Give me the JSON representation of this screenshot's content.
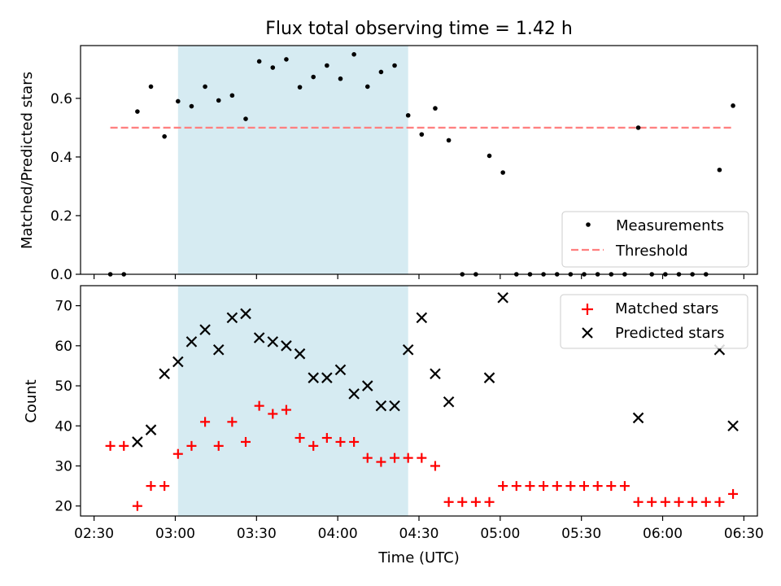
{
  "chart_data": [
    {
      "type": "scatter",
      "title": "Flux total observing time = 1.42 h",
      "xlabel": "",
      "ylabel": "Matched/Predicted stars",
      "xlim": [
        "02:25",
        "06:35"
      ],
      "ylim": [
        0,
        0.78
      ],
      "yticks": [
        "0.0",
        "0.2",
        "0.4",
        "0.6"
      ],
      "shaded_interval": [
        "03:01",
        "04:26"
      ],
      "shaded_color": "#add8e6",
      "legend_position": "lower-right",
      "series": [
        {
          "name": "Measurements",
          "marker": "dot",
          "color": "#000000",
          "x": [
            "02:36",
            "02:41",
            "02:46",
            "02:51",
            "02:56",
            "03:01",
            "03:06",
            "03:11",
            "03:16",
            "03:21",
            "03:26",
            "03:31",
            "03:36",
            "03:41",
            "03:46",
            "03:51",
            "03:56",
            "04:01",
            "04:06",
            "04:11",
            "04:16",
            "04:21",
            "04:26",
            "04:31",
            "04:36",
            "04:41",
            "04:46",
            "04:51",
            "04:56",
            "05:01",
            "05:06",
            "05:11",
            "05:16",
            "05:21",
            "05:26",
            "05:31",
            "05:36",
            "05:41",
            "05:46",
            "05:51",
            "05:56",
            "06:01",
            "06:06",
            "06:11",
            "06:16",
            "06:21",
            "06:26"
          ],
          "y": [
            0,
            0,
            0.555,
            0.64,
            0.47,
            0.59,
            0.573,
            0.64,
            0.593,
            0.61,
            0.53,
            0.726,
            0.705,
            0.733,
            0.638,
            0.673,
            0.712,
            0.667,
            0.75,
            0.64,
            0.69,
            0.712,
            0.542,
            0.477,
            0.566,
            0.457,
            0,
            0,
            0.404,
            0.347,
            0,
            0,
            0,
            0,
            0,
            0,
            0,
            0,
            0,
            0.5,
            0,
            0,
            0,
            0,
            0,
            0.356,
            0.575
          ]
        },
        {
          "name": "Threshold",
          "style": "dashed",
          "color": "#ff7f7f",
          "x": [
            "02:36",
            "06:26"
          ],
          "y": [
            0.5,
            0.5
          ]
        }
      ]
    },
    {
      "type": "scatter",
      "xlabel": "Time (UTC)",
      "ylabel": "Count",
      "xlim": [
        "02:25",
        "06:35"
      ],
      "ylim": [
        17.5,
        75
      ],
      "xticks": [
        "02:30",
        "03:00",
        "03:30",
        "04:00",
        "04:30",
        "05:00",
        "05:30",
        "06:00",
        "06:30"
      ],
      "yticks": [
        "20",
        "30",
        "40",
        "50",
        "60",
        "70"
      ],
      "shaded_interval": [
        "03:01",
        "04:26"
      ],
      "shaded_color": "#add8e6",
      "legend_position": "top-right",
      "series": [
        {
          "name": "Matched stars",
          "marker": "plus",
          "color": "#ff0000",
          "x": [
            "02:36",
            "02:41",
            "02:46",
            "02:51",
            "02:56",
            "03:01",
            "03:06",
            "03:11",
            "03:16",
            "03:21",
            "03:26",
            "03:31",
            "03:36",
            "03:41",
            "03:46",
            "03:51",
            "03:56",
            "04:01",
            "04:06",
            "04:11",
            "04:16",
            "04:21",
            "04:26",
            "04:31",
            "04:36",
            "04:41",
            "04:46",
            "04:51",
            "04:56",
            "05:01",
            "05:06",
            "05:11",
            "05:16",
            "05:21",
            "05:26",
            "05:31",
            "05:36",
            "05:41",
            "05:46",
            "05:51",
            "05:56",
            "06:01",
            "06:06",
            "06:11",
            "06:16",
            "06:21",
            "06:26"
          ],
          "y": [
            35,
            35,
            20,
            25,
            25,
            33,
            35,
            41,
            35,
            41,
            36,
            45,
            43,
            44,
            37,
            35,
            37,
            36,
            36,
            32,
            31,
            32,
            32,
            32,
            30,
            21,
            21,
            21,
            21,
            25,
            25,
            25,
            25,
            25,
            25,
            25,
            25,
            25,
            25,
            21,
            21,
            21,
            21,
            21,
            21,
            21,
            23
          ]
        },
        {
          "name": "Predicted stars",
          "marker": "x",
          "color": "#000000",
          "x": [
            "02:46",
            "02:51",
            "02:56",
            "03:01",
            "03:06",
            "03:11",
            "03:16",
            "03:21",
            "03:26",
            "03:31",
            "03:36",
            "03:41",
            "03:46",
            "03:51",
            "03:56",
            "04:01",
            "04:06",
            "04:11",
            "04:16",
            "04:21",
            "04:26",
            "04:31",
            "04:36",
            "04:41",
            "04:56",
            "05:01",
            "05:51",
            "06:21",
            "06:26"
          ],
          "y": [
            36,
            39,
            53,
            56,
            61,
            64,
            59,
            67,
            68,
            62,
            61,
            60,
            58,
            52,
            52,
            54,
            48,
            50,
            45,
            45,
            59,
            67,
            53,
            46,
            52,
            72,
            42,
            59,
            40
          ]
        }
      ]
    }
  ]
}
